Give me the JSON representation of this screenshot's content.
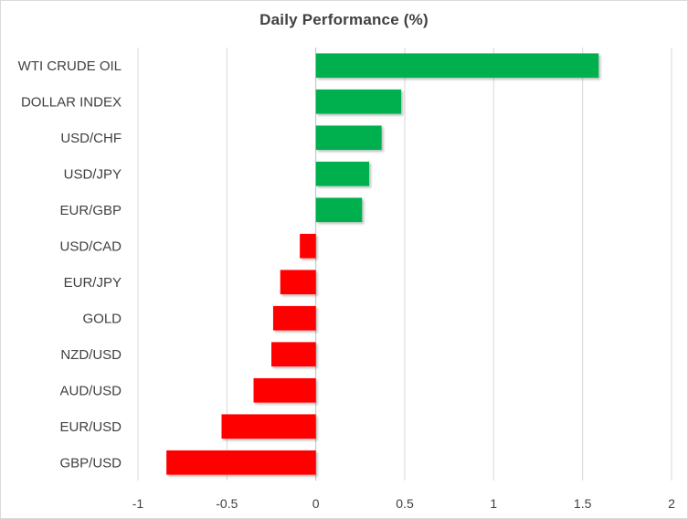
{
  "chart_data": {
    "type": "bar",
    "orientation": "horizontal",
    "title": "Daily Performance  (%)",
    "xlabel": "",
    "ylabel": "",
    "xlim": [
      -1,
      2
    ],
    "xticks": [
      "-1",
      "-0.5",
      "0",
      "0.5",
      "1",
      "1.5",
      "2"
    ],
    "grid": "vertical",
    "legend": "none",
    "categories": [
      "WTI CRUDE OIL",
      "DOLLAR INDEX",
      "USD/CHF",
      "USD/JPY",
      "EUR/GBP",
      "USD/CAD",
      "EUR/JPY",
      "GOLD",
      "NZD/USD",
      "AUD/USD",
      "EUR/USD",
      "GBP/USD"
    ],
    "values": [
      1.59,
      0.48,
      0.37,
      0.3,
      0.26,
      -0.09,
      -0.2,
      -0.24,
      -0.25,
      -0.35,
      -0.53,
      -0.84
    ],
    "colors": {
      "positive": "#00b050",
      "negative": "#ff0000",
      "grid": "#d9d9d9",
      "axis": "#bfbfbf",
      "text": "#404040"
    }
  }
}
